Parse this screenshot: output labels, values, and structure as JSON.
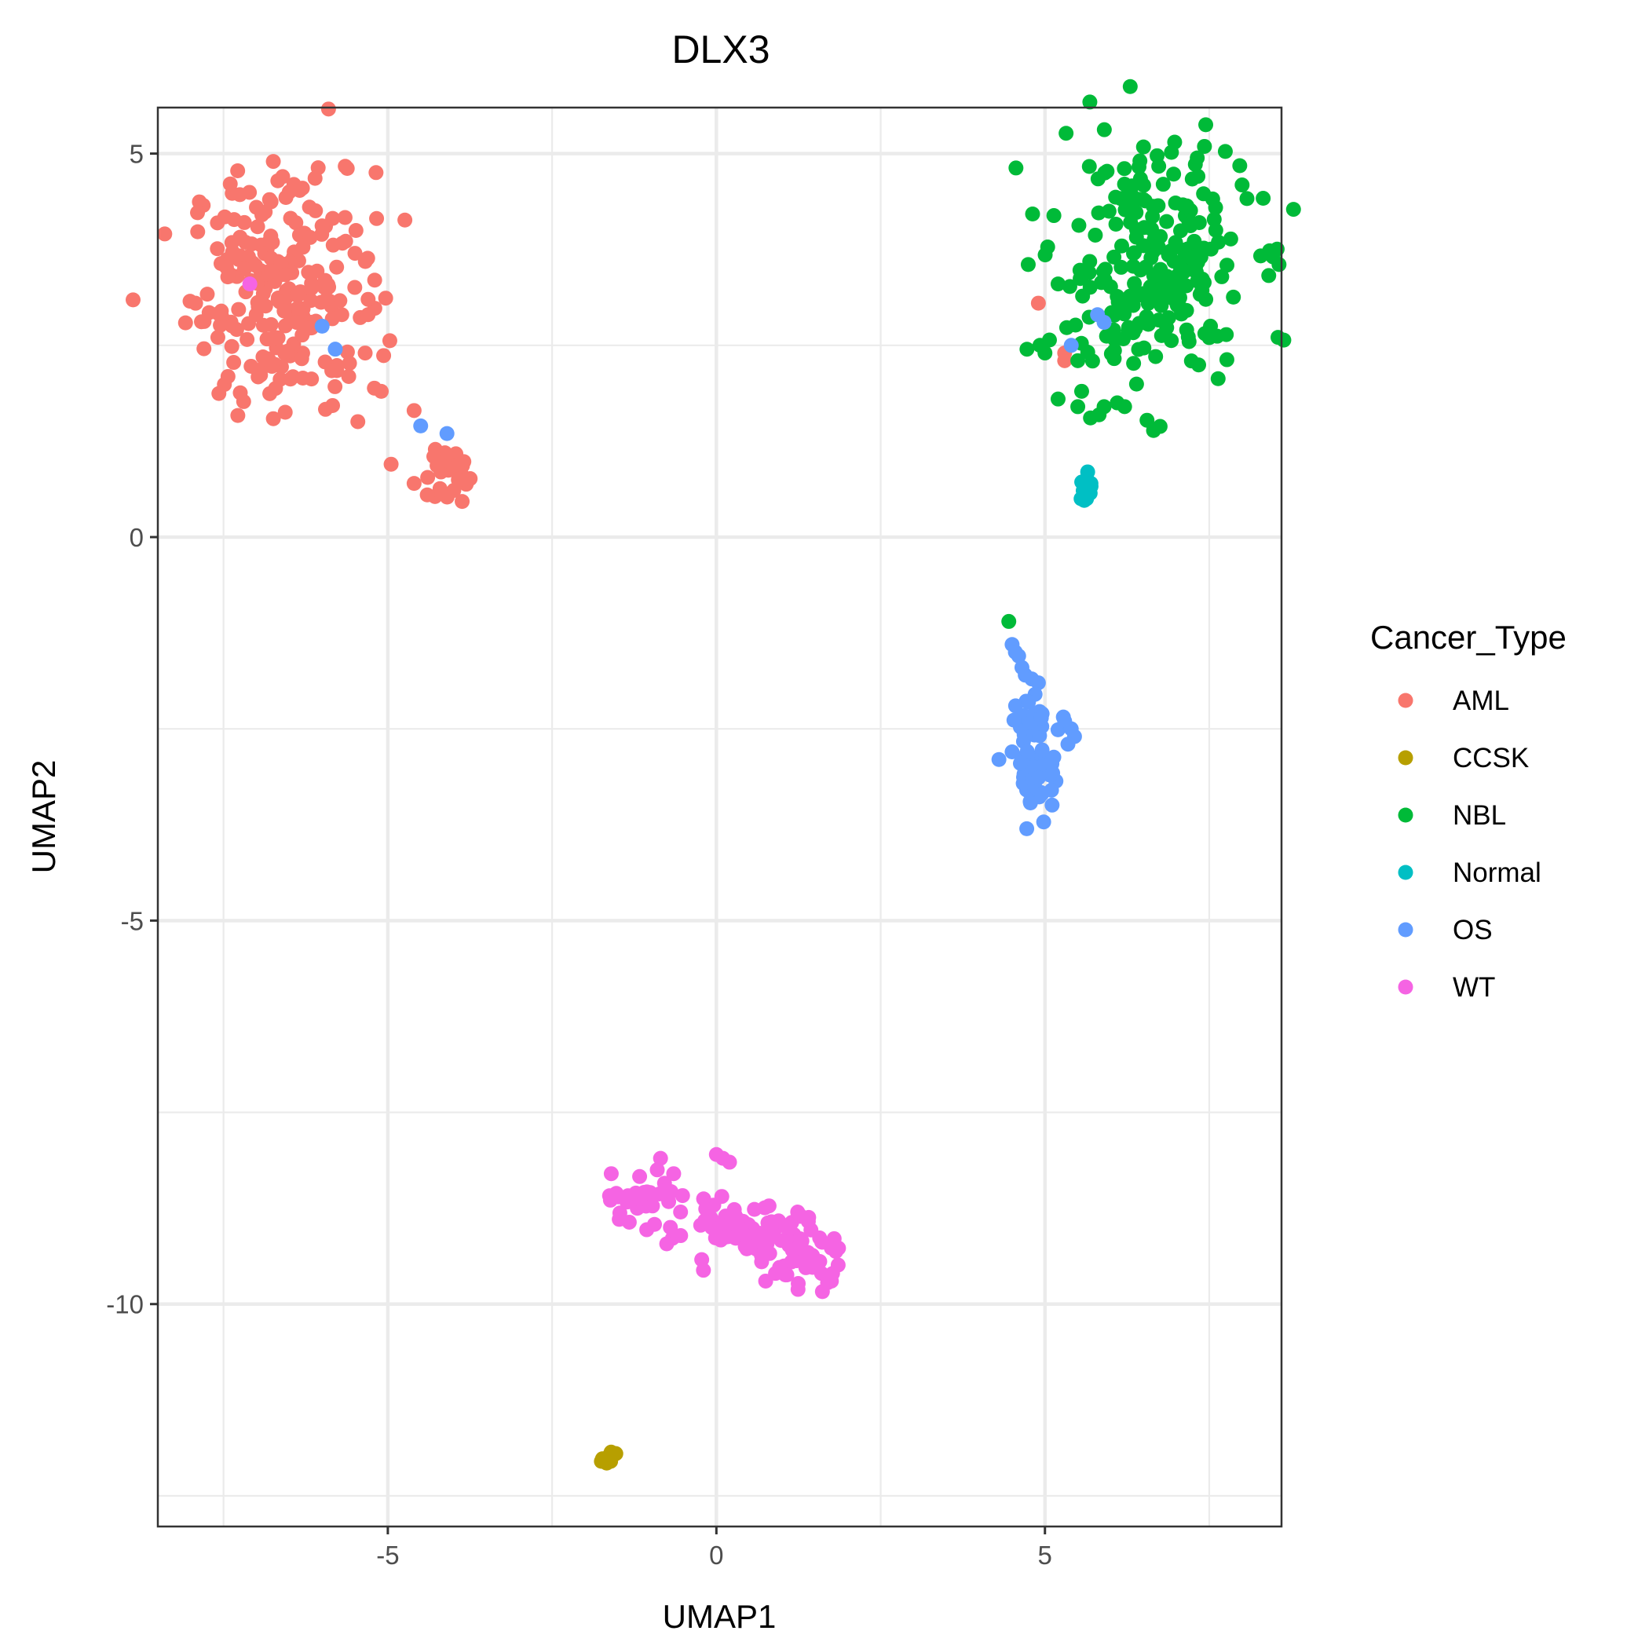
{
  "chart_data": {
    "type": "scatter",
    "title": "DLX3",
    "xlabel": "UMAP1",
    "ylabel": "UMAP2",
    "xlim": [
      -8.5,
      8.6
    ],
    "ylim": [
      -12.9,
      5.6
    ],
    "x_ticks": [
      -5,
      0,
      5
    ],
    "y_ticks": [
      5,
      0,
      -5,
      -10
    ],
    "grid": true,
    "legend": {
      "title": "Cancer_Type",
      "position": "right"
    },
    "series": [
      {
        "name": "AML",
        "color": "#F8766D",
        "clusters": [
          {
            "cx": -6.6,
            "cy": 3.2,
            "sx": 0.7,
            "sy": 0.8,
            "n": 230
          },
          {
            "cx": -4.1,
            "cy": 0.85,
            "sx": 0.15,
            "sy": 0.2,
            "n": 25
          }
        ],
        "points": [
          [
            -5.2,
            3.35
          ],
          [
            -5.5,
            3.7
          ],
          [
            -5.3,
            3.1
          ],
          [
            -5.7,
            2.9
          ],
          [
            -5.3,
            2.9
          ],
          [
            -5.1,
            1.9
          ],
          [
            -4.6,
            1.65
          ],
          [
            -4.95,
            0.95
          ],
          [
            -4.6,
            0.7
          ],
          [
            -4.4,
            0.55
          ],
          [
            -4.3,
            1.05
          ],
          [
            -6.6,
            4.7
          ],
          [
            -6.5,
            4.5
          ],
          [
            -7.0,
            4.3
          ],
          [
            -6.8,
            4.4
          ],
          [
            4.9,
            3.05
          ],
          [
            5.3,
            2.4
          ],
          [
            5.3,
            2.3
          ]
        ]
      },
      {
        "name": "CCSK",
        "color": "#B79F00",
        "clusters": [
          {
            "cx": -1.65,
            "cy": -12.0,
            "sx": 0.06,
            "sy": 0.05,
            "n": 8
          }
        ],
        "points": [
          [
            -1.55,
            -11.95
          ],
          [
            -1.75,
            -12.05
          ],
          [
            -1.62,
            -12.0
          ]
        ]
      },
      {
        "name": "NBL",
        "color": "#00BA38",
        "clusters": [
          {
            "cx": 6.6,
            "cy": 3.5,
            "sx": 0.75,
            "sy": 0.8,
            "n": 250
          }
        ],
        "points": [
          [
            4.45,
            -1.1
          ],
          [
            5.2,
            1.8
          ],
          [
            5.5,
            1.7
          ],
          [
            5.9,
            1.7
          ],
          [
            6.1,
            1.75
          ],
          [
            5.0,
            2.4
          ],
          [
            5.2,
            3.3
          ],
          [
            7.5,
            2.6
          ],
          [
            7.6,
            4.0
          ],
          [
            6.8,
            4.6
          ],
          [
            6.5,
            4.4
          ],
          [
            5.5,
            2.3
          ]
        ]
      },
      {
        "name": "Normal",
        "color": "#00BFC4",
        "clusters": [
          {
            "cx": 5.6,
            "cy": 0.6,
            "sx": 0.06,
            "sy": 0.1,
            "n": 10
          }
        ],
        "points": [
          [
            5.65,
            0.85
          ],
          [
            5.55,
            0.5
          ],
          [
            5.7,
            0.7
          ]
        ]
      },
      {
        "name": "OS",
        "color": "#619CFF",
        "clusters": [
          {
            "cx": 4.9,
            "cy": -3.05,
            "sx": 0.15,
            "sy": 0.25,
            "n": 45
          },
          {
            "cx": 4.9,
            "cy": -2.35,
            "sx": 0.25,
            "sy": 0.1,
            "n": 18
          }
        ],
        "points": [
          [
            4.5,
            -1.4
          ],
          [
            4.55,
            -1.5
          ],
          [
            4.6,
            -1.55
          ],
          [
            4.65,
            -1.7
          ],
          [
            4.7,
            -1.8
          ],
          [
            4.8,
            -1.85
          ],
          [
            4.9,
            -1.9
          ],
          [
            4.85,
            -2.05
          ],
          [
            4.75,
            -2.15
          ],
          [
            5.3,
            -2.4
          ],
          [
            5.4,
            -2.5
          ],
          [
            5.45,
            -2.6
          ],
          [
            5.35,
            -2.7
          ],
          [
            4.3,
            -2.9
          ],
          [
            4.5,
            -2.8
          ],
          [
            4.95,
            -3.35
          ],
          [
            5.1,
            -3.3
          ],
          [
            -6.0,
            2.75
          ],
          [
            -5.8,
            2.45
          ],
          [
            -4.5,
            1.45
          ],
          [
            -4.1,
            1.35
          ],
          [
            5.4,
            2.5
          ],
          [
            5.8,
            2.9
          ],
          [
            5.9,
            2.8
          ]
        ]
      },
      {
        "name": "WT",
        "color": "#F564E3",
        "clusters": [
          {
            "cx": 0.45,
            "cy": -9.1,
            "sx": 0.65,
            "sy": 0.18,
            "n": 90
          },
          {
            "cx": 1.35,
            "cy": -9.45,
            "sx": 0.25,
            "sy": 0.15,
            "n": 25
          },
          {
            "cx": -1.2,
            "cy": -8.65,
            "sx": 0.3,
            "sy": 0.15,
            "n": 28
          }
        ],
        "points": [
          [
            -1.6,
            -8.3
          ],
          [
            -0.9,
            -8.25
          ],
          [
            -0.65,
            -8.3
          ],
          [
            -0.85,
            -8.1
          ],
          [
            0,
            -8.05
          ],
          [
            0.1,
            -8.1
          ],
          [
            0.2,
            -8.15
          ],
          [
            -0.7,
            -9.0
          ],
          [
            0.75,
            -9.7
          ],
          [
            0.9,
            -9.6
          ],
          [
            1.75,
            -9.7
          ],
          [
            1.6,
            -9.6
          ],
          [
            -7.1,
            3.3
          ]
        ]
      }
    ]
  }
}
